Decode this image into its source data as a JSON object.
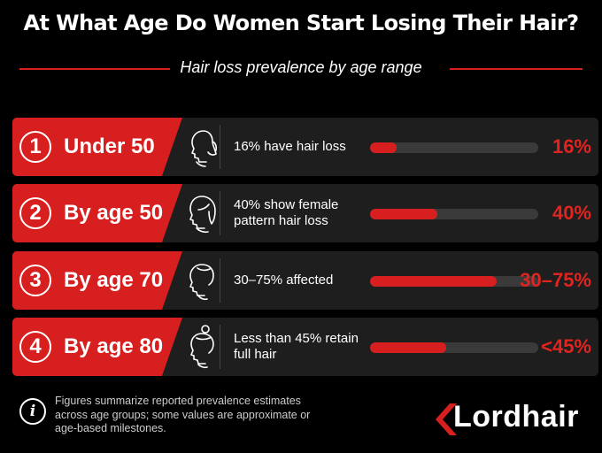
{
  "title": "At What Age Do Women Start Losing Their Hair?",
  "subtitle": "Hair loss prevalence by age range",
  "colors": {
    "accent": "#d81f1f",
    "row_bg": "#1e1e1e",
    "track": "#3a3a3a"
  },
  "chart_data": {
    "type": "bar",
    "categories": [
      "Under 50",
      "By age 50",
      "By age 70",
      "By age 80"
    ],
    "series": [
      {
        "values": [
          16,
          40,
          75,
          45
        ]
      }
    ],
    "ranges": [
      [
        16,
        16
      ],
      [
        40,
        40
      ],
      [
        30,
        75
      ],
      [
        0,
        45
      ]
    ],
    "ylim": [
      0,
      100
    ],
    "grid": false
  },
  "rows": [
    {
      "num": "1",
      "age": "Under 50",
      "desc": "16% have hair loss",
      "pct": "16%",
      "icon": "woman-profile-ponytail-icon"
    },
    {
      "num": "2",
      "age": "By age 50",
      "desc": "40% show female pattern hair loss",
      "pct": "40%",
      "icon": "woman-profile-bob-icon"
    },
    {
      "num": "3",
      "age": "By age 70",
      "desc": "30–75% affected",
      "pct": "30–75%",
      "icon": "woman-profile-short-icon"
    },
    {
      "num": "4",
      "age": "By age 80",
      "desc": "Less than 45% retain full hair",
      "pct": "<45%",
      "icon": "woman-profile-bun-icon"
    }
  ],
  "footnote": "Figures summarize reported prevalence estimates across age groups; some values are approximate or age-based milestones.",
  "info_icon": "i",
  "logo": {
    "text": "Lordhair",
    "icon": "lordhair-chevron-logo-icon"
  }
}
